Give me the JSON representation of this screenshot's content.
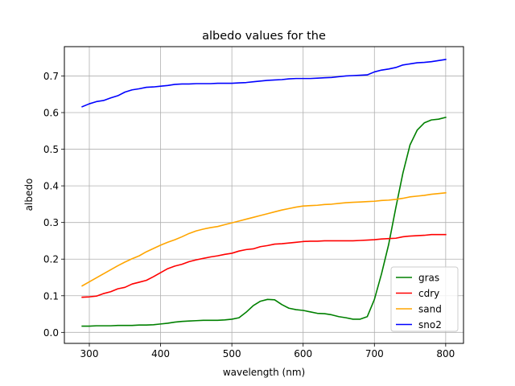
{
  "chart_data": {
    "type": "line",
    "title": "albedo values for the",
    "xlabel": "wavelength (nm)",
    "ylabel": "albedo",
    "xlim": [
      265,
      825
    ],
    "ylim": [
      -0.03,
      0.78
    ],
    "xticks": [
      300,
      400,
      500,
      600,
      700,
      800
    ],
    "yticks": [
      0.0,
      0.1,
      0.2,
      0.3,
      0.4,
      0.5,
      0.6,
      0.7
    ],
    "ytick_labels": [
      "0.0",
      "0.1",
      "0.2",
      "0.3",
      "0.4",
      "0.5",
      "0.6",
      "0.7"
    ],
    "grid": true,
    "legend_position": "lower-right",
    "x": [
      290,
      300,
      310,
      320,
      330,
      340,
      350,
      360,
      370,
      380,
      390,
      400,
      410,
      420,
      430,
      440,
      450,
      460,
      470,
      480,
      490,
      500,
      510,
      520,
      530,
      540,
      550,
      560,
      570,
      580,
      590,
      600,
      610,
      620,
      630,
      640,
      650,
      660,
      670,
      680,
      690,
      700,
      710,
      720,
      730,
      740,
      750,
      760,
      770,
      780,
      790,
      800
    ],
    "series": [
      {
        "name": "gras",
        "color": "#008000",
        "values": [
          0.017,
          0.017,
          0.018,
          0.018,
          0.018,
          0.019,
          0.019,
          0.019,
          0.02,
          0.02,
          0.021,
          0.023,
          0.025,
          0.028,
          0.03,
          0.031,
          0.032,
          0.033,
          0.033,
          0.033,
          0.034,
          0.036,
          0.04,
          0.055,
          0.073,
          0.085,
          0.09,
          0.089,
          0.076,
          0.066,
          0.062,
          0.06,
          0.056,
          0.052,
          0.051,
          0.048,
          0.043,
          0.04,
          0.036,
          0.036,
          0.043,
          0.09,
          0.16,
          0.24,
          0.34,
          0.435,
          0.512,
          0.552,
          0.572,
          0.58,
          0.582,
          0.587
        ]
      },
      {
        "name": "cdry",
        "color": "#ff0000",
        "values": [
          0.096,
          0.097,
          0.099,
          0.106,
          0.111,
          0.119,
          0.123,
          0.132,
          0.137,
          0.142,
          0.152,
          0.163,
          0.174,
          0.181,
          0.186,
          0.193,
          0.198,
          0.202,
          0.206,
          0.209,
          0.213,
          0.216,
          0.222,
          0.226,
          0.228,
          0.234,
          0.237,
          0.241,
          0.242,
          0.244,
          0.246,
          0.248,
          0.249,
          0.249,
          0.25,
          0.25,
          0.25,
          0.25,
          0.25,
          0.251,
          0.252,
          0.253,
          0.255,
          0.256,
          0.257,
          0.261,
          0.263,
          0.264,
          0.265,
          0.267,
          0.267,
          0.267
        ]
      },
      {
        "name": "sand",
        "color": "#ffa500",
        "values": [
          0.127,
          0.138,
          0.149,
          0.16,
          0.171,
          0.182,
          0.192,
          0.201,
          0.209,
          0.22,
          0.229,
          0.238,
          0.246,
          0.253,
          0.261,
          0.27,
          0.277,
          0.282,
          0.286,
          0.289,
          0.294,
          0.299,
          0.304,
          0.309,
          0.314,
          0.319,
          0.324,
          0.329,
          0.334,
          0.338,
          0.342,
          0.345,
          0.346,
          0.347,
          0.349,
          0.35,
          0.352,
          0.354,
          0.355,
          0.356,
          0.357,
          0.358,
          0.36,
          0.361,
          0.363,
          0.366,
          0.37,
          0.372,
          0.374,
          0.377,
          0.379,
          0.381
        ]
      },
      {
        "name": "sno2",
        "color": "#0000ff",
        "values": [
          0.616,
          0.624,
          0.63,
          0.633,
          0.64,
          0.646,
          0.656,
          0.662,
          0.665,
          0.669,
          0.67,
          0.672,
          0.674,
          0.677,
          0.678,
          0.678,
          0.679,
          0.679,
          0.679,
          0.68,
          0.68,
          0.68,
          0.681,
          0.682,
          0.684,
          0.686,
          0.688,
          0.689,
          0.69,
          0.692,
          0.693,
          0.693,
          0.693,
          0.694,
          0.695,
          0.696,
          0.698,
          0.7,
          0.701,
          0.702,
          0.703,
          0.711,
          0.716,
          0.719,
          0.723,
          0.73,
          0.733,
          0.736,
          0.737,
          0.739,
          0.742,
          0.745
        ]
      }
    ]
  }
}
